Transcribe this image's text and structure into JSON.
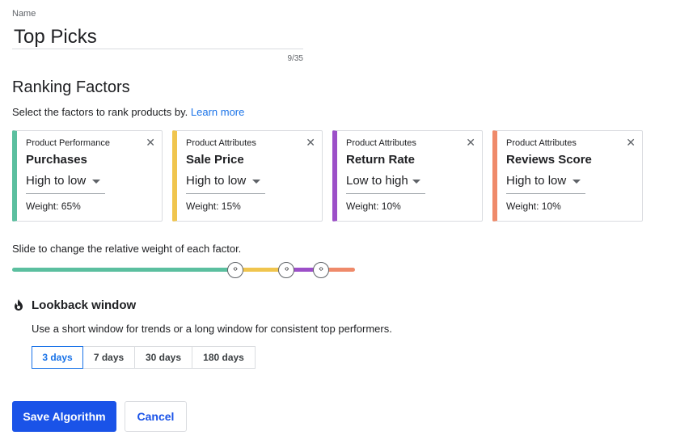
{
  "name_field": {
    "label": "Name",
    "value": "Top Picks",
    "char_count": "9/35"
  },
  "ranking": {
    "title": "Ranking Factors",
    "description": "Select the factors to rank products by.",
    "learn_more": "Learn more",
    "factors": [
      {
        "category": "Product Performance",
        "name": "Purchases",
        "direction": "High to low",
        "weight": "Weight: 65%",
        "color": "#5bbf9f",
        "close": "✕"
      },
      {
        "category": "Product Attributes",
        "name": "Sale Price",
        "direction": "High to low",
        "weight": "Weight: 15%",
        "color": "#f0c54e",
        "close": "✕"
      },
      {
        "category": "Product Attributes",
        "name": "Return Rate",
        "direction": "Low to high",
        "weight": "Weight: 10%",
        "color": "#9c4fc8",
        "close": "✕"
      },
      {
        "category": "Product Attributes",
        "name": "Reviews Score",
        "direction": "High to low",
        "weight": "Weight: 10%",
        "color": "#ef8a6a",
        "close": "✕"
      }
    ]
  },
  "slider": {
    "label": "Slide to change the relative weight of each factor.",
    "handle_glyph": "‹›",
    "weights": [
      0.65,
      0.15,
      0.1,
      0.1
    ]
  },
  "lookback": {
    "icon": "flame-icon",
    "title": "Lookback window",
    "description": "Use a short window for trends or a long window for consistent top performers.",
    "options": [
      "3 days",
      "7 days",
      "30 days",
      "180 days"
    ],
    "selected": "3 days"
  },
  "actions": {
    "save": "Save Algorithm",
    "cancel": "Cancel"
  }
}
